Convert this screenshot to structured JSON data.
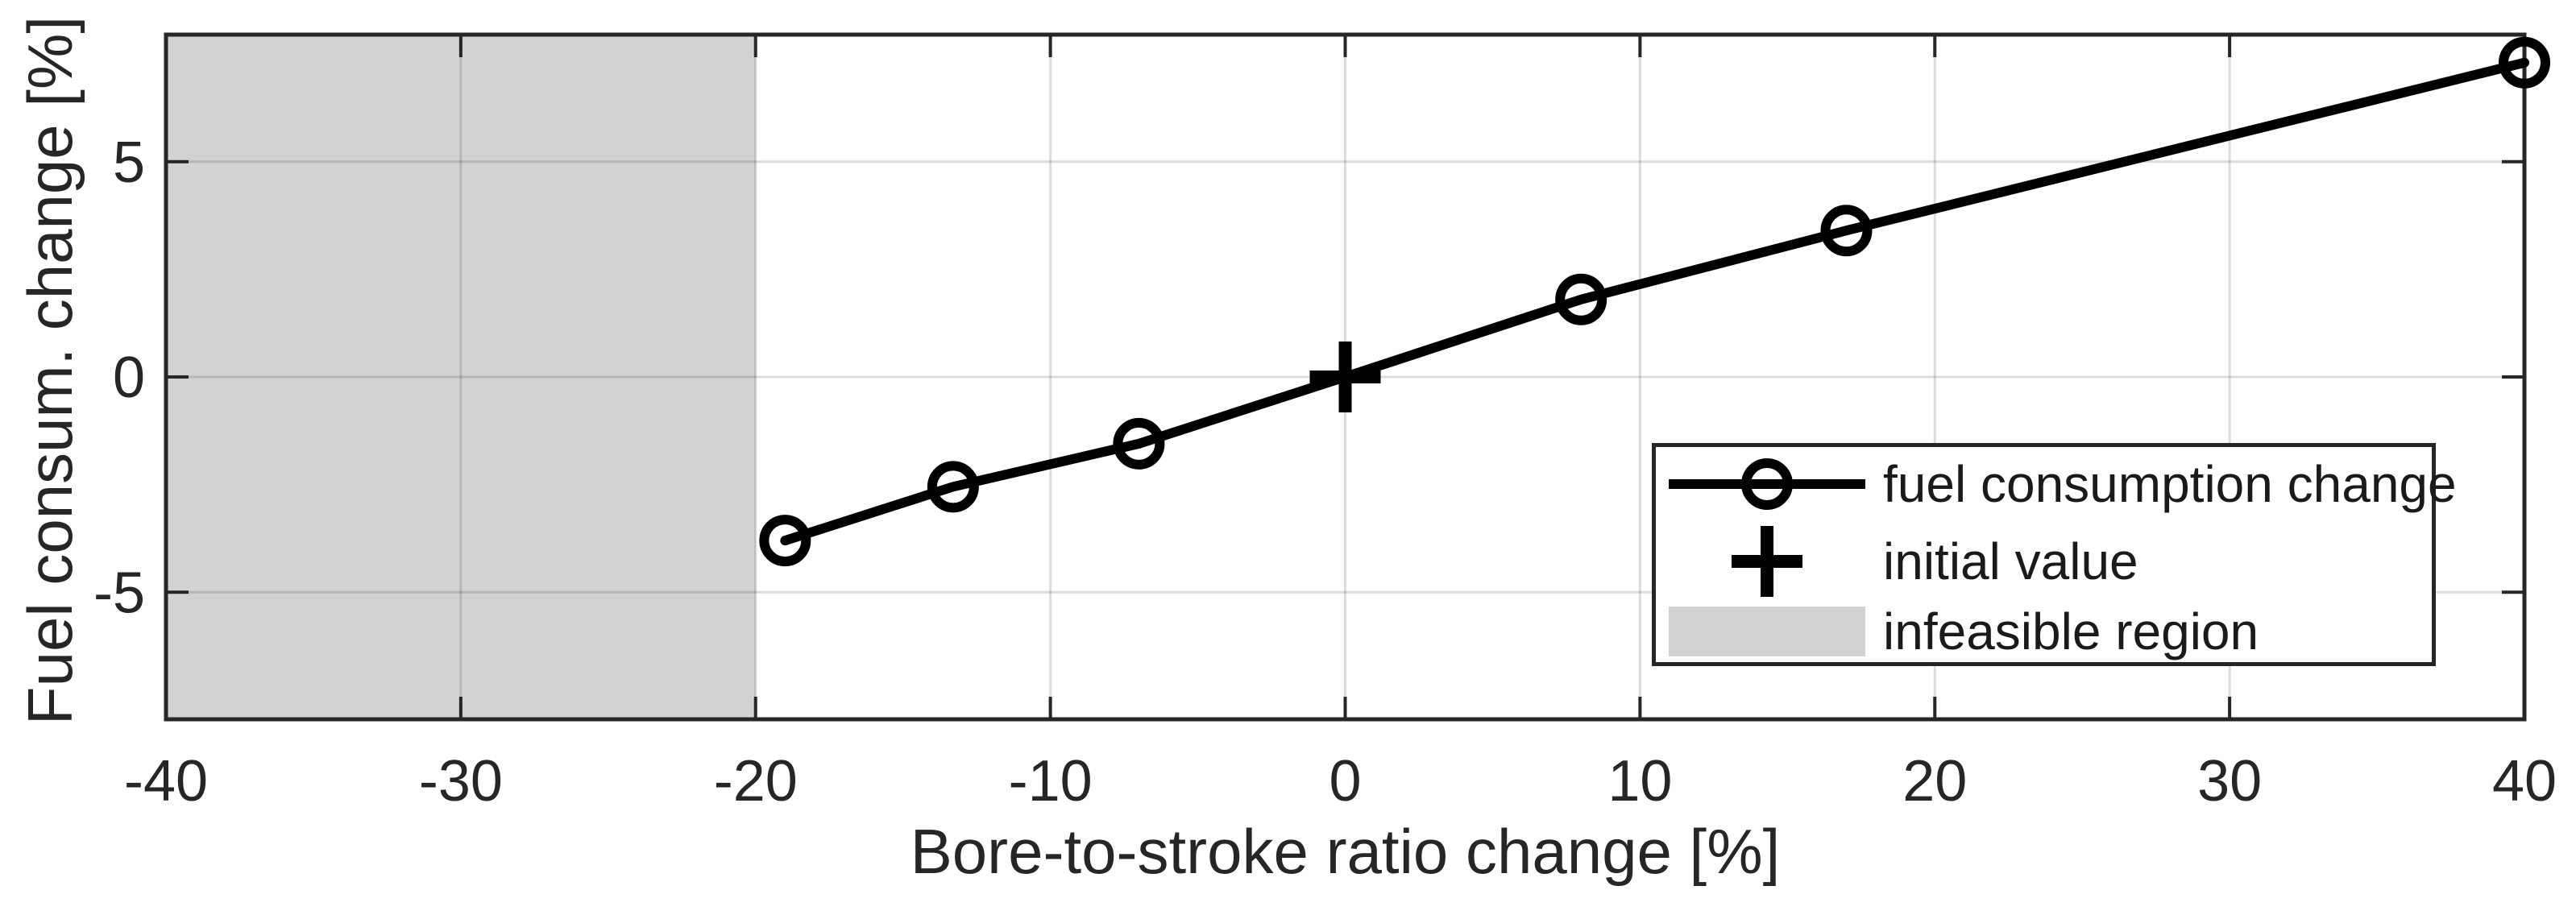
{
  "figure": {
    "background": "#ffffff"
  },
  "colors": {
    "axis": "#262626",
    "grid": "#262626",
    "grid_opacity": 0.16,
    "line": "#000000",
    "infeasible_region": "#d2d2d2",
    "legend_border": "#262626",
    "legend_background": "#ffffff"
  },
  "chart_data": {
    "type": "line",
    "title": "",
    "xlabel": "Bore-to-stroke ratio change [%]",
    "ylabel": "Fuel consum. change [%]",
    "xlim": [
      -40,
      40
    ],
    "ylim": [
      -7.95,
      7.95
    ],
    "xticks": [
      -40,
      -30,
      -20,
      -10,
      0,
      10,
      20,
      30,
      40
    ],
    "yticks": [
      -5,
      0,
      5
    ],
    "grid": true,
    "legend_position": "lower right inside",
    "series": [
      {
        "name": "fuel consumption change",
        "kind": "line",
        "marker": "circle",
        "x": [
          -19,
          -13.3,
          -7,
          0,
          8,
          17,
          40
        ],
        "y": [
          -3.8,
          -2.55,
          -1.55,
          0,
          1.8,
          3.4,
          7.3
        ]
      },
      {
        "name": "initial value",
        "kind": "point",
        "marker": "plus",
        "x": [
          0
        ],
        "y": [
          0
        ]
      },
      {
        "name": "infeasible region",
        "kind": "region",
        "type": "region",
        "x_range": [
          -40,
          -20
        ]
      }
    ]
  }
}
